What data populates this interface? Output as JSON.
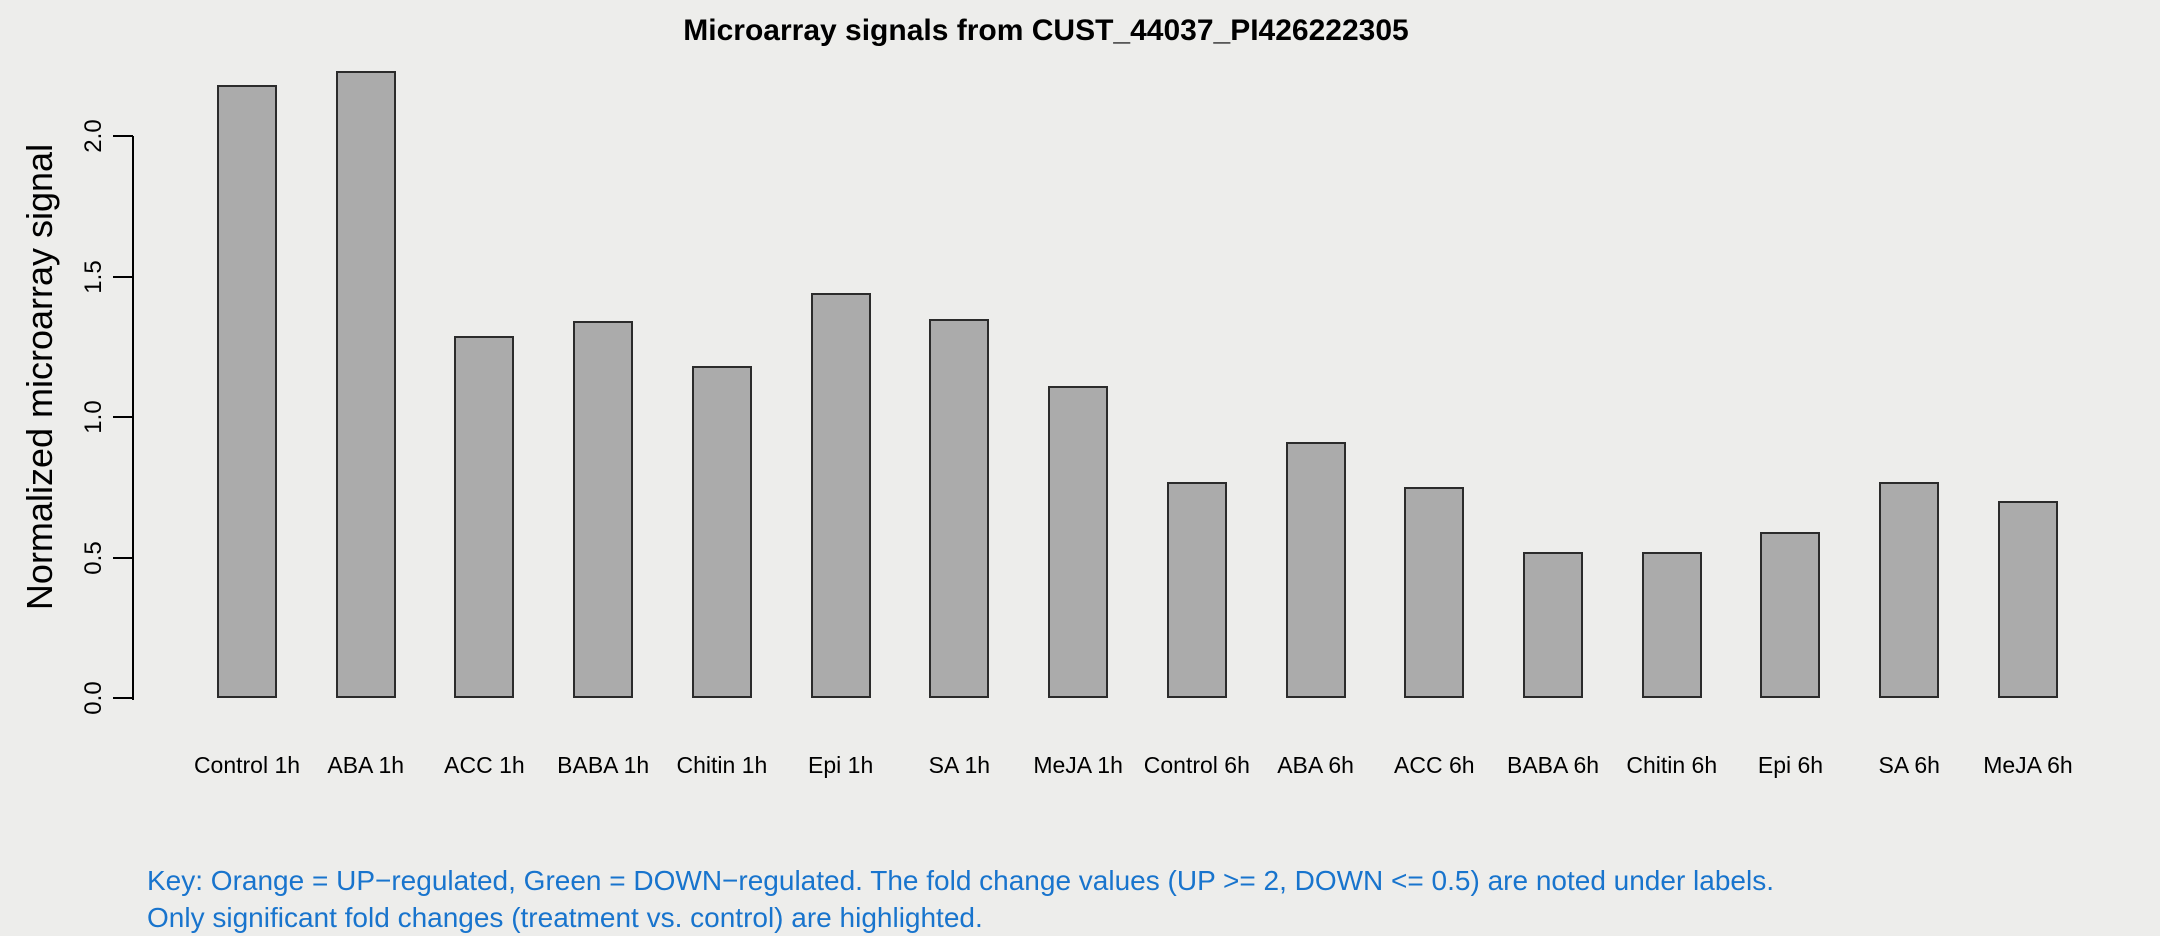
{
  "title": "Microarray signals from CUST_44037_PI426222305",
  "y_axis": {
    "label": "Normalized microarray signal",
    "tick_labels": [
      "0.0",
      "0.5",
      "1.0",
      "1.5",
      "2.0"
    ]
  },
  "x_axis": {
    "categories": [
      "Control 1h",
      "ABA 1h",
      "ACC 1h",
      "BABA 1h",
      "Chitin 1h",
      "Epi 1h",
      "SA 1h",
      "MeJA 1h",
      "Control 6h",
      "ABA 6h",
      "ACC 6h",
      "BABA 6h",
      "Chitin 6h",
      "Epi 6h",
      "SA 6h",
      "MeJA 6h"
    ]
  },
  "key": {
    "line1": "Key: Orange = UP−regulated, Green = DOWN−regulated. The fold change values (UP >= 2, DOWN <= 0.5) are noted under labels.",
    "line2": "Only significant fold changes (treatment vs. control) are highlighted.",
    "color": "#1874CD"
  },
  "colors": {
    "background": "#EDEDEB",
    "bar_fill": "#ABABAB",
    "bar_border": "#2B2B2B",
    "axis": "#000000"
  },
  "chart_data": {
    "type": "bar",
    "title": "Microarray signals from CUST_44037_PI426222305",
    "xlabel": "",
    "ylabel": "Normalized microarray signal",
    "ylim": [
      0,
      2.23
    ],
    "yticks": [
      0.0,
      0.5,
      1.0,
      1.5,
      2.0
    ],
    "grid": false,
    "legend_position": "none",
    "categories": [
      "Control 1h",
      "ABA 1h",
      "ACC 1h",
      "BABA 1h",
      "Chitin 1h",
      "Epi 1h",
      "SA 1h",
      "MeJA 1h",
      "Control 6h",
      "ABA 6h",
      "ACC 6h",
      "BABA 6h",
      "Chitin 6h",
      "Epi 6h",
      "SA 6h",
      "MeJA 6h"
    ],
    "values": [
      2.18,
      2.23,
      1.29,
      1.34,
      1.18,
      1.44,
      1.35,
      1.11,
      0.77,
      0.91,
      0.75,
      0.52,
      0.52,
      0.59,
      0.77,
      0.7
    ]
  }
}
